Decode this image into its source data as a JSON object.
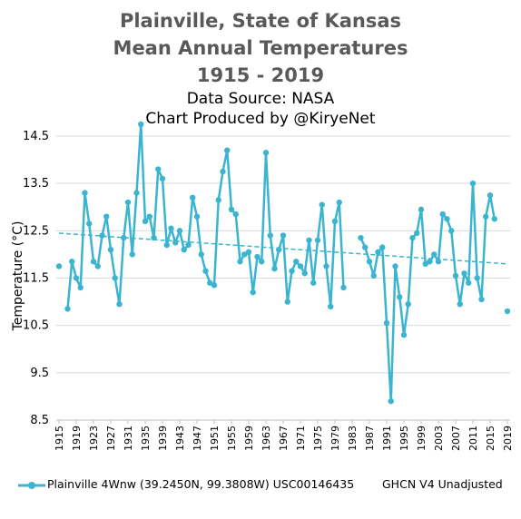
{
  "title_lines": {
    "line1": "Plainville, State of Kansas",
    "line2": "Mean Annual Temperatures",
    "line3": "1915 - 2019",
    "line4": "Data Source: NASA",
    "line5": "Chart Produced by @KiryeNet"
  },
  "colors": {
    "series": "#3BB5CF",
    "title": "#595959",
    "grid": "#d9d9d9"
  },
  "legend": {
    "series_label": "Plainville 4Wnw (39.2450N, 99.3808W) USC00146435",
    "right_label": "GHCN V4 Unadjusted"
  },
  "chart_data": {
    "type": "line",
    "title": "Plainville, State of Kansas Mean Annual Temperatures 1915 - 2019",
    "xlabel": "",
    "ylabel": "Temperature (°C)",
    "ylim": [
      8.5,
      14.5
    ],
    "yticks": [
      "8.5",
      "9.5",
      "10.5",
      "11.5",
      "12.5",
      "13.5",
      "14.5"
    ],
    "xlim": [
      1915,
      2019
    ],
    "xticks": [
      "1915",
      "1919",
      "1923",
      "1927",
      "1931",
      "1935",
      "1939",
      "1943",
      "1947",
      "1951",
      "1955",
      "1959",
      "1963",
      "1967",
      "1971",
      "1975",
      "1979",
      "1983",
      "1987",
      "1991",
      "1995",
      "1999",
      "2003",
      "2007",
      "2011",
      "2015",
      "2019"
    ],
    "grid": true,
    "legend_position": "bottom",
    "series": [
      {
        "name": "Plainville 4Wnw (39.2450N, 99.3808W) USC00146435",
        "x": [
          1915,
          1916,
          1917,
          1918,
          1919,
          1920,
          1921,
          1922,
          1923,
          1924,
          1925,
          1926,
          1927,
          1928,
          1929,
          1930,
          1931,
          1932,
          1933,
          1934,
          1935,
          1936,
          1937,
          1938,
          1939,
          1940,
          1941,
          1942,
          1943,
          1944,
          1945,
          1946,
          1947,
          1948,
          1949,
          1950,
          1951,
          1952,
          1953,
          1954,
          1955,
          1956,
          1957,
          1958,
          1959,
          1960,
          1961,
          1962,
          1963,
          1964,
          1965,
          1966,
          1967,
          1968,
          1969,
          1970,
          1971,
          1972,
          1973,
          1974,
          1975,
          1976,
          1977,
          1978,
          1979,
          1980,
          1981,
          1982,
          1983,
          1984,
          1985,
          1986,
          1987,
          1988,
          1989,
          1990,
          1991,
          1992,
          1993,
          1994,
          1995,
          1996,
          1997,
          1998,
          1999,
          2000,
          2001,
          2002,
          2003,
          2004,
          2005,
          2006,
          2007,
          2008,
          2009,
          2010,
          2011,
          2012,
          2013,
          2014,
          2015,
          2016,
          2017,
          2018,
          2019
        ],
        "values": [
          11.75,
          null,
          10.85,
          11.85,
          11.5,
          11.3,
          13.3,
          12.65,
          11.85,
          11.75,
          12.4,
          12.8,
          12.1,
          11.5,
          10.95,
          12.35,
          13.1,
          12.0,
          13.3,
          14.75,
          12.7,
          12.8,
          12.35,
          13.8,
          13.6,
          12.2,
          12.55,
          12.25,
          12.5,
          12.1,
          12.2,
          13.2,
          12.8,
          12.0,
          11.65,
          11.4,
          11.35,
          13.15,
          13.75,
          14.2,
          12.95,
          12.85,
          11.85,
          12.0,
          12.05,
          11.2,
          11.95,
          11.85,
          14.15,
          12.4,
          11.7,
          12.1,
          12.4,
          11.0,
          11.65,
          11.85,
          11.75,
          11.6,
          12.3,
          11.4,
          12.3,
          13.05,
          11.75,
          10.9,
          12.7,
          13.1,
          11.3,
          null,
          null,
          null,
          12.35,
          12.15,
          11.85,
          11.55,
          12.05,
          12.15,
          10.55,
          8.9,
          11.75,
          11.1,
          10.3,
          10.95,
          12.35,
          12.45,
          12.95,
          11.8,
          11.85,
          12.0,
          11.85,
          12.85,
          12.75,
          12.5,
          11.55,
          10.95,
          11.6,
          11.4,
          13.5,
          11.5,
          11.05,
          12.8,
          13.25,
          12.75,
          null,
          null,
          10.8
        ]
      }
    ],
    "trend": {
      "start": [
        1915,
        12.45
      ],
      "end": [
        2019,
        11.8
      ],
      "style": "dashed"
    }
  }
}
